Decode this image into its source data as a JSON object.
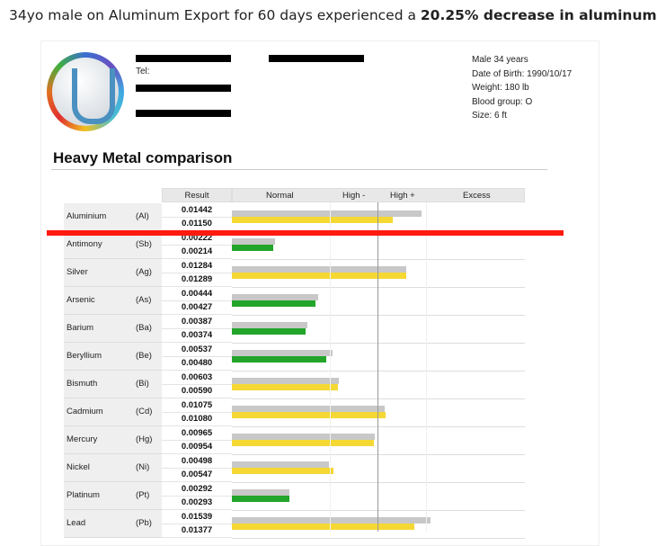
{
  "caption": {
    "text": "34yo male on Aluminum Export for 60 days experienced a ",
    "bold": "20.25% decrease in aluminum"
  },
  "header": {
    "tel_label": "Tel:"
  },
  "patient": {
    "lines": [
      "Male 34 years",
      "Date of Birth: 1990/10/17",
      "Weight: 180 lb",
      "Blood group: O",
      "Size: 6 ft"
    ]
  },
  "section_title": "Heavy Metal comparison",
  "columns": {
    "result": "Result",
    "normal": "Normal",
    "high_minus": "High -",
    "high_plus": "High +",
    "excess": "Excess"
  },
  "colors": {
    "before": "#c8c8c8",
    "normal": "#22a52a",
    "elevated": "#f5d833",
    "marker": "#ff1a10"
  },
  "chart_data": {
    "type": "bar",
    "title": "Heavy Metal comparison",
    "orientation": "horizontal",
    "bands": [
      "Normal",
      "High -",
      "High +",
      "Excess"
    ],
    "rows": [
      {
        "name": "Aluminium",
        "symbol": "(Al)",
        "values": [
          "0.01442",
          "0.01150"
        ],
        "levels": [
          0.647,
          0.549
        ],
        "status": "elevated"
      },
      {
        "name": "Antimony",
        "symbol": "(Sb)",
        "values": [
          "0.00222",
          "0.00214"
        ],
        "levels": [
          0.148,
          0.142
        ],
        "status": "normal"
      },
      {
        "name": "Silver",
        "symbol": "(Ag)",
        "values": [
          "0.01284",
          "0.01289"
        ],
        "levels": [
          0.594,
          0.596
        ],
        "status": "elevated"
      },
      {
        "name": "Arsenic",
        "symbol": "(As)",
        "values": [
          "0.00444",
          "0.00427"
        ],
        "levels": [
          0.296,
          0.285
        ],
        "status": "normal"
      },
      {
        "name": "Barium",
        "symbol": "(Ba)",
        "values": [
          "0.00387",
          "0.00374"
        ],
        "levels": [
          0.258,
          0.25
        ],
        "status": "normal"
      },
      {
        "name": "Beryllium",
        "symbol": "(Be)",
        "values": [
          "0.00537",
          "0.00480"
        ],
        "levels": [
          0.344,
          0.321
        ],
        "status": "normal"
      },
      {
        "name": "Bismuth",
        "symbol": "(Bi)",
        "values": [
          "0.00603",
          "0.00590"
        ],
        "levels": [
          0.365,
          0.362
        ],
        "status": "elevated"
      },
      {
        "name": "Cadmium",
        "symbol": "(Cd)",
        "values": [
          "0.01075",
          "0.01080"
        ],
        "levels": [
          0.523,
          0.525
        ],
        "status": "elevated"
      },
      {
        "name": "Mercury",
        "symbol": "(Hg)",
        "values": [
          "0.00965",
          "0.00954"
        ],
        "levels": [
          0.488,
          0.484
        ],
        "status": "elevated"
      },
      {
        "name": "Nickel",
        "symbol": "(Ni)",
        "values": [
          "0.00498",
          "0.00547"
        ],
        "levels": [
          0.332,
          0.347
        ],
        "status": "elevated"
      },
      {
        "name": "Platinum",
        "symbol": "(Pt)",
        "values": [
          "0.00292",
          "0.00293"
        ],
        "levels": [
          0.195,
          0.196
        ],
        "status": "normal"
      },
      {
        "name": "Lead",
        "symbol": "(Pb)",
        "values": [
          "0.01539",
          "0.01377"
        ],
        "levels": [
          0.679,
          0.624
        ],
        "status": "elevated"
      }
    ]
  }
}
